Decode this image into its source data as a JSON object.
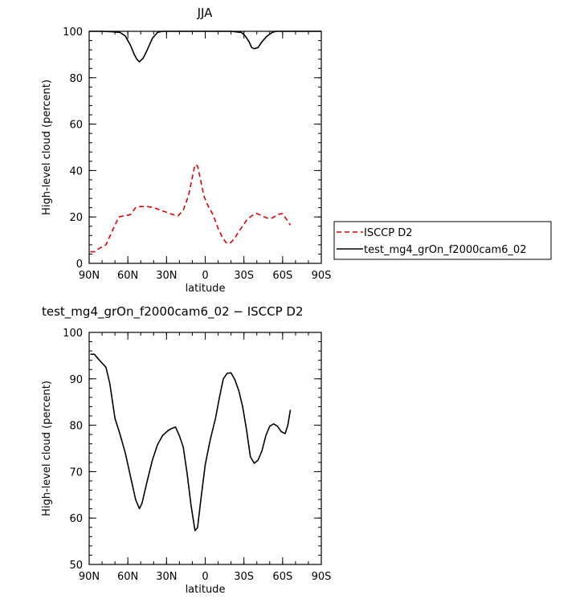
{
  "chart_data": [
    {
      "type": "line",
      "title": "JJA",
      "xlabel": "latitude",
      "ylabel": "High-level cloud (percent)",
      "xlim": [
        90,
        -90
      ],
      "ylim": [
        0,
        100
      ],
      "xticks": [
        90,
        60,
        30,
        0,
        -30,
        -60,
        -90
      ],
      "xtick_labels": [
        "90N",
        "60N",
        "30N",
        "0",
        "30S",
        "60S",
        "90S"
      ],
      "yticks": [
        0,
        20,
        40,
        60,
        80,
        100
      ],
      "ytick_labels": [
        "0",
        "20",
        "40",
        "60",
        "80",
        "100"
      ],
      "legend_position": "right",
      "series": [
        {
          "name": "ISCCP D2",
          "color": "#e00000",
          "dash": "dashed",
          "x": [
            89,
            86,
            82,
            77,
            72,
            67,
            63,
            58,
            54,
            50,
            45,
            40,
            35,
            30,
            25,
            21,
            17,
            13,
            10,
            8,
            6,
            4,
            1,
            -2,
            -6,
            -10,
            -13,
            -16,
            -18,
            -20,
            -23,
            -27,
            -32,
            -36,
            -40,
            -44,
            -48,
            -52,
            -56,
            -60,
            -63,
            -66
          ],
          "values": [
            5,
            5,
            6.5,
            8,
            14,
            20,
            20.5,
            21,
            24,
            24.5,
            24.5,
            24,
            23,
            22,
            21,
            20.5,
            23,
            29,
            37,
            42.5,
            42,
            37,
            29,
            25,
            21,
            15,
            11.5,
            9,
            8.5,
            9,
            11,
            14.5,
            18.5,
            20.5,
            21.5,
            20.5,
            19.5,
            19.5,
            21,
            21.5,
            19,
            16.5
          ]
        },
        {
          "name": "test_mg4_grOn_f2000cam6_02",
          "color": "#000000",
          "dash": "solid",
          "x": [
            90,
            80,
            72,
            66,
            62,
            58,
            55,
            53,
            51,
            48,
            45,
            41,
            37,
            33,
            28,
            20,
            0,
            -20,
            -28,
            -31,
            -34,
            -36,
            -38,
            -41,
            -44,
            -48,
            -52,
            -55,
            -60,
            -90
          ],
          "values": [
            100,
            100,
            99.8,
            99.5,
            98,
            94,
            90,
            88,
            86.8,
            88.5,
            92,
            97,
            99.5,
            100,
            100,
            100,
            100,
            100,
            99.5,
            98,
            95.5,
            93,
            92.5,
            93,
            95.5,
            98,
            99.5,
            100,
            100,
            100
          ]
        }
      ]
    },
    {
      "type": "line",
      "title": "test_mg4_grOn_f2000cam6_02 − ISCCP D2",
      "xlabel": "latitude",
      "ylabel": "High-level cloud (percent)",
      "xlim": [
        90,
        -90
      ],
      "ylim": [
        50,
        100
      ],
      "xticks": [
        90,
        60,
        30,
        0,
        -30,
        -60,
        -90
      ],
      "xtick_labels": [
        "90N",
        "60N",
        "30N",
        "0",
        "30S",
        "60S",
        "90S"
      ],
      "yticks": [
        50,
        60,
        70,
        80,
        90,
        100
      ],
      "ytick_labels": [
        "50",
        "60",
        "70",
        "80",
        "90",
        "100"
      ],
      "series": [
        {
          "color": "#000000",
          "dash": "solid",
          "x": [
            89,
            86,
            82,
            77,
            74,
            70,
            66,
            62,
            58,
            54,
            51,
            49,
            45,
            41,
            37,
            33,
            29,
            26,
            23,
            20,
            17,
            14,
            11,
            8,
            6,
            3,
            0,
            -4,
            -8,
            -11,
            -14,
            -17,
            -20,
            -23,
            -26,
            -29,
            -32,
            -35,
            -38,
            -41,
            -44,
            -47,
            -50,
            -53,
            -56,
            -59,
            -62,
            -64,
            -66
          ],
          "values": [
            95.3,
            95.3,
            94,
            92.5,
            89,
            81.5,
            78,
            74,
            69,
            64,
            62,
            63.2,
            68,
            72.5,
            75.8,
            77.8,
            78.8,
            79.3,
            79.6,
            77.7,
            75.2,
            69.5,
            62.8,
            57.3,
            57.9,
            64.9,
            71.5,
            77,
            81.5,
            86,
            90,
            91.2,
            91.3,
            89.8,
            87.5,
            84,
            79,
            73.2,
            71.8,
            72.5,
            74.5,
            77.8,
            79.8,
            80.3,
            79.8,
            78.6,
            78.2,
            80,
            83.3
          ]
        }
      ]
    }
  ]
}
